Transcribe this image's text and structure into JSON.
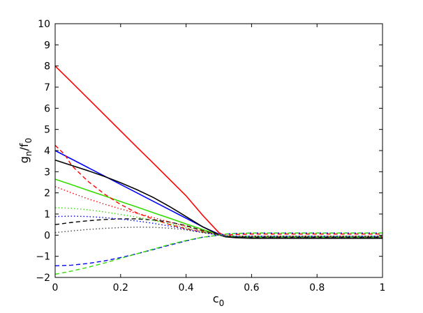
{
  "chart_data": {
    "type": "line",
    "title": "",
    "xlabel": {
      "base": "c",
      "sub": "0"
    },
    "ylabel": {
      "g": "g",
      "g_sub": "n",
      "slash": "/f",
      "f_sub": "0"
    },
    "xlim": [
      0,
      1
    ],
    "ylim": [
      -2,
      10
    ],
    "x_ticks": [
      0,
      0.2,
      0.4,
      0.6,
      0.8,
      1
    ],
    "x_tick_labels": [
      "0",
      "0.2",
      "0.4",
      "0.6",
      "0.8",
      "1"
    ],
    "y_ticks": [
      -2,
      -1,
      0,
      1,
      2,
      3,
      4,
      5,
      6,
      7,
      8,
      9,
      10
    ],
    "y_tick_labels": [
      "−2",
      "−1",
      "0",
      "1",
      "2",
      "3",
      "4",
      "5",
      "6",
      "7",
      "8",
      "9",
      "10"
    ],
    "grid": false,
    "legend": "none",
    "colors": {
      "red": "#ff0000",
      "blue": "#0000ff",
      "green": "#33dd00",
      "black": "#000000",
      "gray": "#444444"
    },
    "series": [
      {
        "color": "#ff0000",
        "style": "solid",
        "x": [
          0,
          0.05,
          0.1,
          0.15,
          0.2,
          0.25,
          0.3,
          0.35,
          0.4,
          0.45,
          0.5,
          0.52,
          0.55,
          0.6,
          0.7,
          0.8,
          0.9,
          1.0
        ],
        "y": [
          8.0,
          7.24,
          6.47,
          5.7,
          4.93,
          4.16,
          3.4,
          2.63,
          1.86,
          0.95,
          0.12,
          -0.05,
          -0.08,
          -0.1,
          -0.1,
          -0.1,
          -0.1,
          -0.1
        ]
      },
      {
        "color": "#0000ff",
        "style": "solid",
        "x": [
          0,
          0.05,
          0.1,
          0.15,
          0.2,
          0.25,
          0.3,
          0.35,
          0.4,
          0.45,
          0.5,
          0.52,
          0.55,
          0.6,
          0.7,
          0.8,
          0.9,
          1.0
        ],
        "y": [
          4.0,
          3.6,
          3.2,
          2.8,
          2.4,
          2.0,
          1.6,
          1.2,
          0.8,
          0.4,
          0.05,
          -0.05,
          -0.08,
          -0.1,
          -0.1,
          -0.1,
          -0.1,
          -0.1
        ]
      },
      {
        "color": "#33dd00",
        "style": "solid",
        "x": [
          0,
          0.05,
          0.1,
          0.15,
          0.2,
          0.25,
          0.3,
          0.35,
          0.4,
          0.45,
          0.5,
          0.52,
          0.55,
          0.6,
          0.7,
          0.8,
          0.9,
          1.0
        ],
        "y": [
          2.65,
          2.39,
          2.12,
          1.86,
          1.59,
          1.33,
          1.06,
          0.8,
          0.53,
          0.27,
          0.02,
          -0.05,
          -0.08,
          -0.1,
          -0.1,
          -0.1,
          -0.1,
          -0.1
        ]
      },
      {
        "color": "#000000",
        "style": "solid",
        "x": [
          0,
          0.05,
          0.1,
          0.15,
          0.2,
          0.25,
          0.3,
          0.35,
          0.4,
          0.45,
          0.5,
          0.52,
          0.55,
          0.6,
          0.7,
          0.8,
          0.9,
          1.0
        ],
        "y": [
          3.55,
          3.3,
          3.05,
          2.78,
          2.48,
          2.15,
          1.78,
          1.35,
          0.88,
          0.4,
          0.02,
          -0.08,
          -0.12,
          -0.15,
          -0.15,
          -0.15,
          -0.15,
          -0.15
        ]
      },
      {
        "color": "#ff0000",
        "style": "dashed",
        "x": [
          0,
          0.03,
          0.05,
          0.1,
          0.15,
          0.2,
          0.25,
          0.3,
          0.35,
          0.4,
          0.45,
          0.5,
          0.52,
          0.55,
          0.6,
          0.7,
          0.8,
          0.9,
          1.0
        ],
        "y": [
          4.25,
          3.8,
          3.3,
          2.55,
          1.95,
          1.45,
          1.05,
          0.75,
          0.5,
          0.3,
          0.15,
          0.02,
          0.0,
          0.03,
          0.05,
          0.05,
          0.05,
          0.05,
          0.05
        ]
      },
      {
        "color": "#0000ff",
        "style": "dashed",
        "x": [
          0,
          0.05,
          0.1,
          0.15,
          0.2,
          0.25,
          0.3,
          0.35,
          0.4,
          0.45,
          0.5,
          0.52,
          0.55,
          0.6,
          0.7,
          0.8,
          0.9,
          1.0
        ],
        "y": [
          -1.45,
          -1.42,
          -1.34,
          -1.22,
          -1.06,
          -0.88,
          -0.68,
          -0.47,
          -0.27,
          -0.1,
          0.0,
          0.05,
          0.08,
          0.1,
          0.1,
          0.1,
          0.1,
          0.1
        ]
      },
      {
        "color": "#33dd00",
        "style": "dashed",
        "x": [
          0,
          0.05,
          0.1,
          0.15,
          0.2,
          0.25,
          0.3,
          0.35,
          0.4,
          0.45,
          0.5,
          0.52,
          0.55,
          0.6,
          0.7,
          0.8,
          0.9,
          1.0
        ],
        "y": [
          -1.85,
          -1.7,
          -1.52,
          -1.32,
          -1.1,
          -0.88,
          -0.66,
          -0.44,
          -0.25,
          -0.1,
          0.0,
          0.05,
          0.08,
          0.1,
          0.1,
          0.1,
          0.1,
          0.1
        ]
      },
      {
        "color": "#000000",
        "style": "dashed",
        "x": [
          0,
          0.05,
          0.1,
          0.15,
          0.2,
          0.25,
          0.3,
          0.35,
          0.4,
          0.45,
          0.5,
          0.52,
          0.55,
          0.6,
          0.7,
          0.8,
          0.9,
          1.0
        ],
        "y": [
          0.5,
          0.6,
          0.68,
          0.74,
          0.77,
          0.77,
          0.72,
          0.62,
          0.45,
          0.22,
          0.0,
          -0.05,
          -0.08,
          -0.1,
          -0.1,
          -0.1,
          -0.1,
          -0.1
        ]
      },
      {
        "color": "#ff0000",
        "style": "dotted",
        "x": [
          0,
          0.05,
          0.1,
          0.15,
          0.2,
          0.25,
          0.3,
          0.35,
          0.4,
          0.45,
          0.5,
          0.52,
          0.55,
          0.6,
          0.7,
          0.8,
          0.9,
          1.0
        ],
        "y": [
          2.3,
          2.0,
          1.72,
          1.47,
          1.24,
          1.03,
          0.83,
          0.62,
          0.42,
          0.2,
          0.0,
          -0.03,
          -0.05,
          -0.05,
          -0.05,
          -0.05,
          -0.05,
          -0.05
        ]
      },
      {
        "color": "#33dd00",
        "style": "dotted",
        "x": [
          0,
          0.05,
          0.1,
          0.15,
          0.2,
          0.25,
          0.3,
          0.35,
          0.4,
          0.45,
          0.5,
          0.52,
          0.55,
          0.6,
          0.7,
          0.8,
          0.9,
          1.0
        ],
        "y": [
          1.3,
          1.27,
          1.2,
          1.1,
          0.98,
          0.85,
          0.7,
          0.53,
          0.35,
          0.17,
          0.0,
          -0.03,
          -0.05,
          -0.05,
          -0.05,
          -0.05,
          -0.05,
          -0.05
        ]
      },
      {
        "color": "#0000ff",
        "style": "dotted",
        "x": [
          0,
          0.05,
          0.1,
          0.15,
          0.2,
          0.25,
          0.3,
          0.35,
          0.4,
          0.45,
          0.5,
          0.52,
          0.55,
          0.6,
          0.7,
          0.8,
          0.9,
          1.0
        ],
        "y": [
          0.88,
          0.9,
          0.88,
          0.83,
          0.76,
          0.67,
          0.56,
          0.43,
          0.28,
          0.13,
          0.0,
          -0.03,
          -0.05,
          -0.05,
          -0.05,
          -0.05,
          -0.05,
          -0.05
        ]
      },
      {
        "color": "#444444",
        "style": "dotted",
        "x": [
          0,
          0.05,
          0.1,
          0.15,
          0.2,
          0.25,
          0.3,
          0.35,
          0.4,
          0.45,
          0.5,
          0.52,
          0.55,
          0.6,
          0.7,
          0.8,
          0.9,
          1.0
        ],
        "y": [
          0.12,
          0.2,
          0.27,
          0.32,
          0.36,
          0.38,
          0.37,
          0.33,
          0.25,
          0.12,
          0.0,
          -0.05,
          -0.08,
          -0.1,
          -0.1,
          -0.1,
          -0.1,
          -0.1
        ]
      }
    ]
  }
}
